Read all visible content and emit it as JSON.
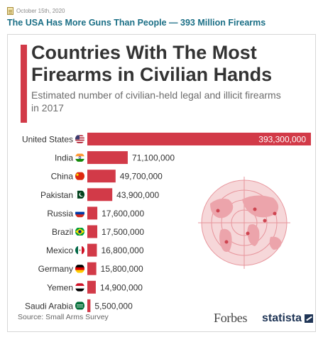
{
  "post": {
    "date": "October 15th, 2020",
    "title": "The USA Has More Guns Than People — 393 Million Firearms"
  },
  "colors": {
    "bar": "#d23a48",
    "title_link": "#1b6f86",
    "brand": "#1f3556"
  },
  "source": "Source: Small Arms Survey",
  "logos": {
    "forbes": "Forbes",
    "statista": "statista"
  },
  "chart_data": {
    "type": "bar",
    "orientation": "horizontal",
    "title": "Countries With The Most Firearms in Civilian Hands",
    "subtitle": "Estimated number of civilian-held legal and illicit firearms in 2017",
    "categories": [
      "United States",
      "India",
      "China",
      "Pakistan",
      "Russia",
      "Brazil",
      "Mexico",
      "Germany",
      "Yemen",
      "Saudi Arabia"
    ],
    "values": [
      393300000,
      71100000,
      49700000,
      43900000,
      17600000,
      17500000,
      16800000,
      15800000,
      14900000,
      5500000
    ],
    "value_labels": [
      "393,300,000",
      "71,100,000",
      "49,700,000",
      "43,900,000",
      "17,600,000",
      "17,500,000",
      "16,800,000",
      "15,800,000",
      "14,900,000",
      "5,500,000"
    ],
    "flag_icons": [
      "us-flag-icon",
      "india-flag-icon",
      "china-flag-icon",
      "pakistan-flag-icon",
      "russia-flag-icon",
      "brazil-flag-icon",
      "mexico-flag-icon",
      "germany-flag-icon",
      "yemen-flag-icon",
      "saudi-arabia-flag-icon"
    ],
    "xlim": [
      0,
      393300000
    ],
    "grid": false,
    "legend": "none"
  }
}
